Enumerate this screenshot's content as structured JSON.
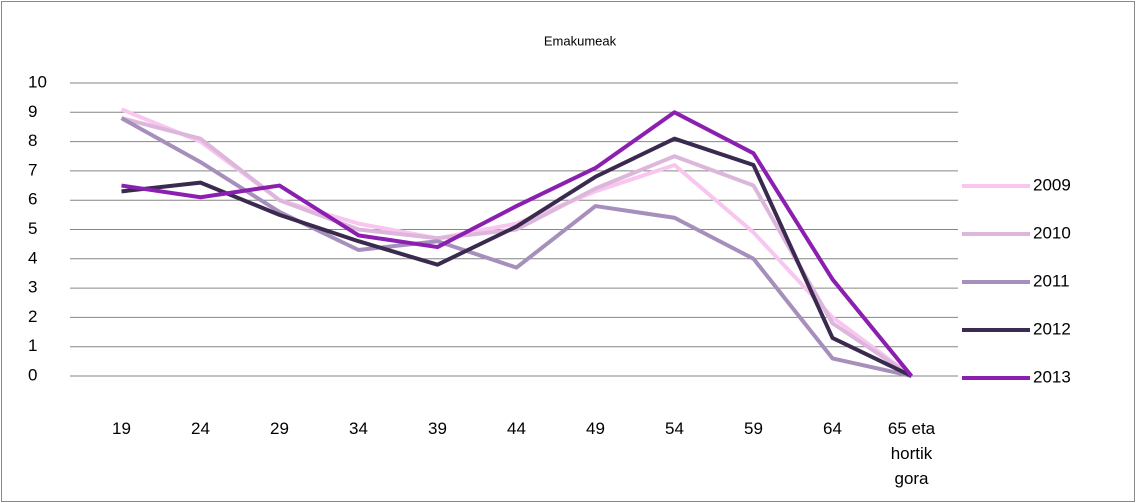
{
  "chart_data": {
    "type": "line",
    "title": "Emakumeak",
    "categories": [
      "19",
      "24",
      "29",
      "34",
      "39",
      "44",
      "49",
      "54",
      "59",
      "64",
      "65 eta hortik gora"
    ],
    "series": [
      {
        "name": "2009",
        "color": "#f8c6ee",
        "values": [
          9.1,
          8.0,
          6.0,
          5.2,
          4.7,
          5.2,
          6.3,
          7.2,
          4.9,
          2.0,
          0
        ]
      },
      {
        "name": "2010",
        "color": "#ddb6dc",
        "values": [
          8.8,
          8.1,
          6.0,
          5.0,
          4.7,
          5.0,
          6.4,
          7.5,
          6.5,
          1.8,
          0
        ]
      },
      {
        "name": "2011",
        "color": "#a68fbb",
        "values": [
          8.8,
          7.3,
          5.6,
          4.3,
          4.6,
          3.7,
          5.8,
          5.4,
          4.0,
          0.6,
          0
        ]
      },
      {
        "name": "2012",
        "color": "#3b2a4f",
        "values": [
          6.3,
          6.6,
          5.5,
          4.6,
          3.8,
          5.1,
          6.8,
          8.1,
          7.2,
          1.3,
          0
        ]
      },
      {
        "name": "2013",
        "color": "#8b20b0",
        "values": [
          6.5,
          6.1,
          6.5,
          4.8,
          4.4,
          5.8,
          7.1,
          9.0,
          7.6,
          3.3,
          0
        ]
      }
    ],
    "ylim": [
      0,
      10
    ],
    "yticks": [
      0,
      1,
      2,
      3,
      4,
      5,
      6,
      7,
      8,
      9,
      10
    ],
    "grid": true,
    "legend": "right"
  }
}
